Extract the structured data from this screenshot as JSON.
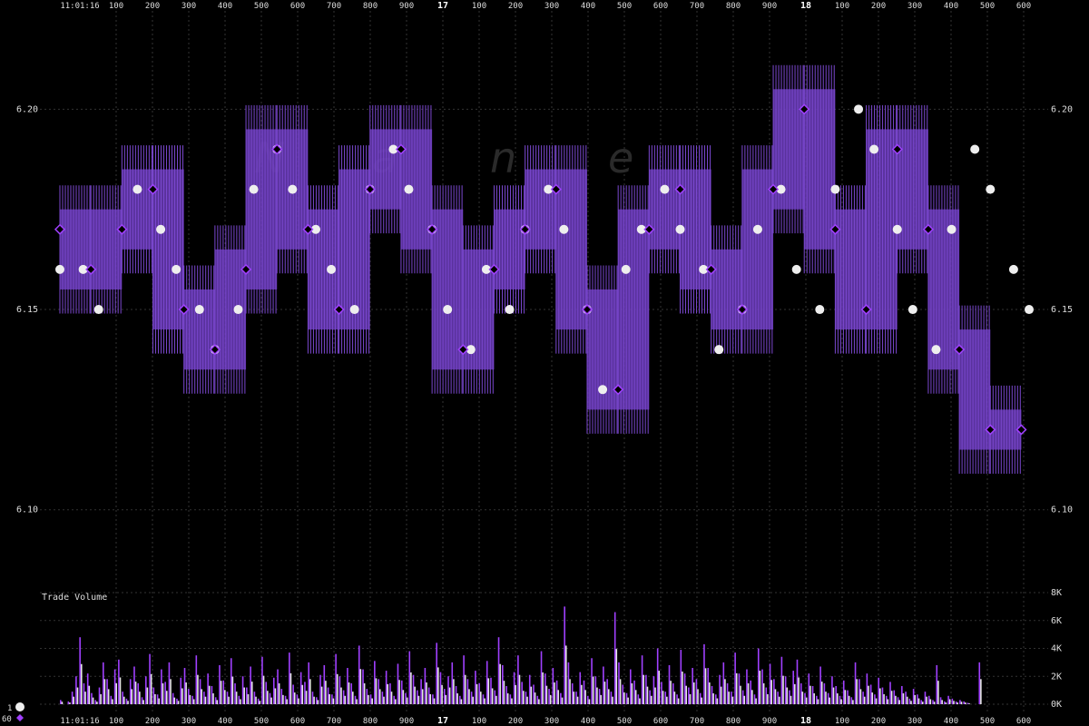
{
  "chart_data": {
    "type": "line",
    "time_label": "11:01:16",
    "x_ticks": [
      "100",
      "200",
      "300",
      "400",
      "500",
      "600",
      "700",
      "800",
      "900",
      "17",
      "100",
      "200",
      "300",
      "400",
      "500",
      "600",
      "700",
      "800",
      "900",
      "18",
      "100",
      "200",
      "300",
      "400",
      "500",
      "600"
    ],
    "y_ticks": [
      "6.20",
      "6.15",
      "6.10"
    ],
    "ylim": [
      6.08,
      6.225
    ],
    "volume_label": "Trade Volume",
    "volume_ticks": [
      "8K",
      "6K",
      "4K",
      "2K",
      "0K"
    ],
    "volume_ylim": [
      0,
      8000
    ],
    "watermark": [
      "N",
      "a",
      "n",
      "e"
    ],
    "legend": [
      {
        "label": "1",
        "symbol": "circle",
        "color": "#eeeeee"
      },
      {
        "label": "60",
        "symbol": "diamond",
        "color": "#a040ff"
      }
    ],
    "series": [
      {
        "name": "1",
        "color": "#eeeeee",
        "x": [
          0,
          6,
          10,
          20,
          26,
          30,
          36,
          40,
          46,
          50,
          56,
          60,
          66,
          70,
          76,
          80,
          86,
          90,
          96,
          100,
          106,
          110,
          116,
          120,
          126,
          130,
          136,
          140,
          146,
          150,
          156,
          160,
          166,
          170,
          176,
          180,
          186,
          190,
          196,
          200,
          206,
          210,
          216,
          220,
          226,
          230,
          236,
          240,
          246,
          250
        ],
        "y": [
          6.16,
          6.16,
          6.15,
          6.18,
          6.17,
          6.16,
          6.15,
          6.14,
          6.15,
          6.18,
          6.19,
          6.18,
          6.17,
          6.16,
          6.15,
          6.18,
          6.19,
          6.18,
          6.17,
          6.15,
          6.14,
          6.16,
          6.15,
          6.17,
          6.18,
          6.17,
          6.15,
          6.13,
          6.16,
          6.17,
          6.18,
          6.17,
          6.16,
          6.14,
          6.15,
          6.17,
          6.18,
          6.16,
          6.15,
          6.18,
          6.2,
          6.19,
          6.17,
          6.15,
          6.14,
          6.17,
          6.19,
          6.18,
          6.16,
          6.15
        ]
      },
      {
        "name": "60",
        "color": "#a040ff",
        "x": [
          0,
          8,
          16,
          24,
          32,
          40,
          48,
          56,
          64,
          72,
          80,
          88,
          96,
          104,
          112,
          120,
          128,
          136,
          144,
          152,
          160,
          168,
          176,
          184,
          192,
          200,
          208,
          216,
          224,
          232,
          240,
          248
        ],
        "y": [
          6.17,
          6.16,
          6.17,
          6.18,
          6.15,
          6.14,
          6.16,
          6.19,
          6.17,
          6.15,
          6.18,
          6.19,
          6.17,
          6.14,
          6.16,
          6.17,
          6.18,
          6.15,
          6.13,
          6.17,
          6.18,
          6.16,
          6.15,
          6.18,
          6.2,
          6.17,
          6.15,
          6.19,
          6.17,
          6.14,
          6.12,
          6.12
        ]
      }
    ],
    "volume": {
      "x_count": 250,
      "values": [
        300,
        0,
        200,
        900,
        2000,
        4800,
        1500,
        2200,
        800,
        300,
        1200,
        3000,
        1800,
        600,
        2500,
        3200,
        900,
        400,
        1800,
        2700,
        1500,
        500,
        2000,
        3600,
        1200,
        700,
        2500,
        1600,
        3000,
        800,
        400,
        1900,
        2600,
        1100,
        600,
        3500,
        1800,
        900,
        2200,
        1300,
        500,
        2800,
        1700,
        900,
        3300,
        1500,
        600,
        2000,
        1200,
        2700,
        900,
        400,
        3400,
        1600,
        800,
        1900,
        2500,
        1100,
        600,
        3700,
        1400,
        700,
        2300,
        1600,
        3000,
        900,
        500,
        2100,
        2800,
        1200,
        700,
        3600,
        2000,
        1000,
        2600,
        1500,
        600,
        4200,
        2500,
        1100,
        700,
        3100,
        1800,
        900,
        2400,
        1500,
        600,
        2900,
        1700,
        800,
        3800,
        2100,
        1000,
        1800,
        2600,
        1200,
        700,
        4400,
        2300,
        1100,
        2000,
        3000,
        1300,
        600,
        3500,
        1800,
        900,
        2400,
        1500,
        700,
        3100,
        1900,
        1000,
        4800,
        2800,
        1300,
        700,
        2300,
        3500,
        1600,
        900,
        2100,
        1400,
        600,
        3800,
        2200,
        1100,
        2600,
        1700,
        800,
        7000,
        3000,
        1500,
        900,
        2300,
        1700,
        600,
        3300,
        2000,
        1100,
        2700,
        1800,
        900,
        6600,
        3000,
        1400,
        800,
        2500,
        1700,
        700,
        3500,
        2100,
        1000,
        2000,
        4000,
        1600,
        900,
        2800,
        1500,
        700,
        3900,
        2200,
        1200,
        2600,
        1800,
        800,
        4300,
        2600,
        1300,
        700,
        2100,
        3000,
        1500,
        900,
        3700,
        2200,
        1000,
        2500,
        1700,
        700,
        4000,
        2500,
        1200,
        2900,
        1800,
        900,
        3400,
        2000,
        1000,
        2400,
        3200,
        1500,
        800,
        2200,
        1300,
        600,
        2700,
        1500,
        800,
        2000,
        1300,
        600,
        1700,
        1000,
        500,
        3000,
        1800,
        900,
        2200,
        1400,
        700,
        1900,
        1200,
        600,
        1600,
        1000,
        500,
        1300,
        900,
        400,
        1100,
        700,
        300,
        900,
        600,
        300,
        2800,
        500,
        200,
        600,
        400,
        200,
        300,
        200,
        100,
        0,
        0,
        3000,
        0,
        0,
        0,
        0,
        0,
        0,
        0,
        0,
        0,
        0,
        0,
        0,
        0,
        0,
        0,
        0,
        0,
        0,
        0
      ]
    }
  }
}
